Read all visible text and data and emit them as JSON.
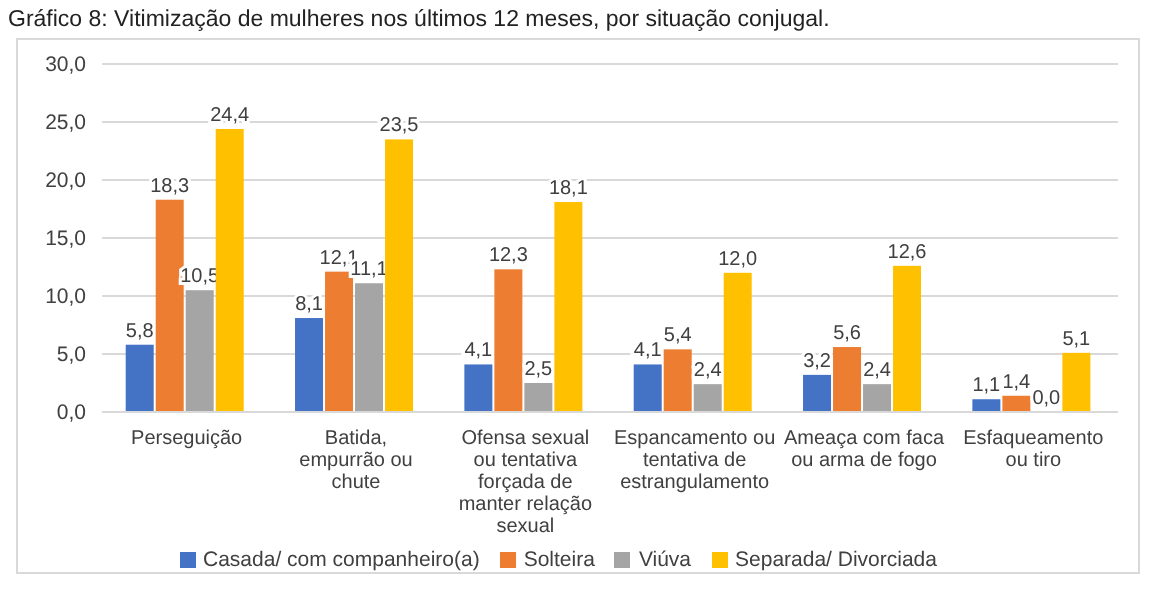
{
  "chart_data": {
    "type": "bar",
    "title": "Gráfico 8: Vitimização de mulheres nos últimos 12 meses, por situação conjugal.",
    "categories": [
      "Perseguição",
      "Batida, empurrão ou chute",
      "Ofensa sexual ou tentativa forçada de manter relação sexual",
      "Espancamento ou tentativa de estrangulamento",
      "Ameaça com faca ou arma de fogo",
      "Esfaqueamento ou tiro"
    ],
    "series": [
      {
        "name": "Casada/ com companheiro(a)",
        "color": "#4472c4",
        "values": [
          5.8,
          8.1,
          4.1,
          4.1,
          3.2,
          1.1
        ],
        "value_labels": [
          "5,8",
          "8,1",
          "4,1",
          "4,1",
          "3,2",
          "1,1"
        ]
      },
      {
        "name": "Solteira",
        "color": "#ed7d31",
        "values": [
          18.3,
          12.1,
          12.3,
          5.4,
          5.6,
          1.4
        ],
        "value_labels": [
          "18,3",
          "12,1",
          "12,3",
          "5,4",
          "5,6",
          "1,4"
        ]
      },
      {
        "name": "Viúva",
        "color": "#a5a5a5",
        "values": [
          10.5,
          11.1,
          2.5,
          2.4,
          2.4,
          0.0
        ],
        "value_labels": [
          "10,5",
          "11,1",
          "2,5",
          "2,4",
          "2,4",
          "0,0"
        ]
      },
      {
        "name": "Separada/ Divorciada",
        "color": "#ffc000",
        "values": [
          24.4,
          23.5,
          18.1,
          12.0,
          12.6,
          5.1
        ],
        "value_labels": [
          "24,4",
          "23,5",
          "18,1",
          "12,0",
          "12,6",
          "5,1"
        ]
      }
    ],
    "ylim": [
      0,
      30
    ],
    "yticks": [
      {
        "value": 0,
        "label": "0,0"
      },
      {
        "value": 5,
        "label": "5,0"
      },
      {
        "value": 10,
        "label": "10,0"
      },
      {
        "value": 15,
        "label": "15,0"
      },
      {
        "value": 20,
        "label": "20,0"
      },
      {
        "value": 25,
        "label": "25,0"
      },
      {
        "value": 30,
        "label": "30,0"
      }
    ],
    "grid": "y",
    "legend": "bottom"
  }
}
